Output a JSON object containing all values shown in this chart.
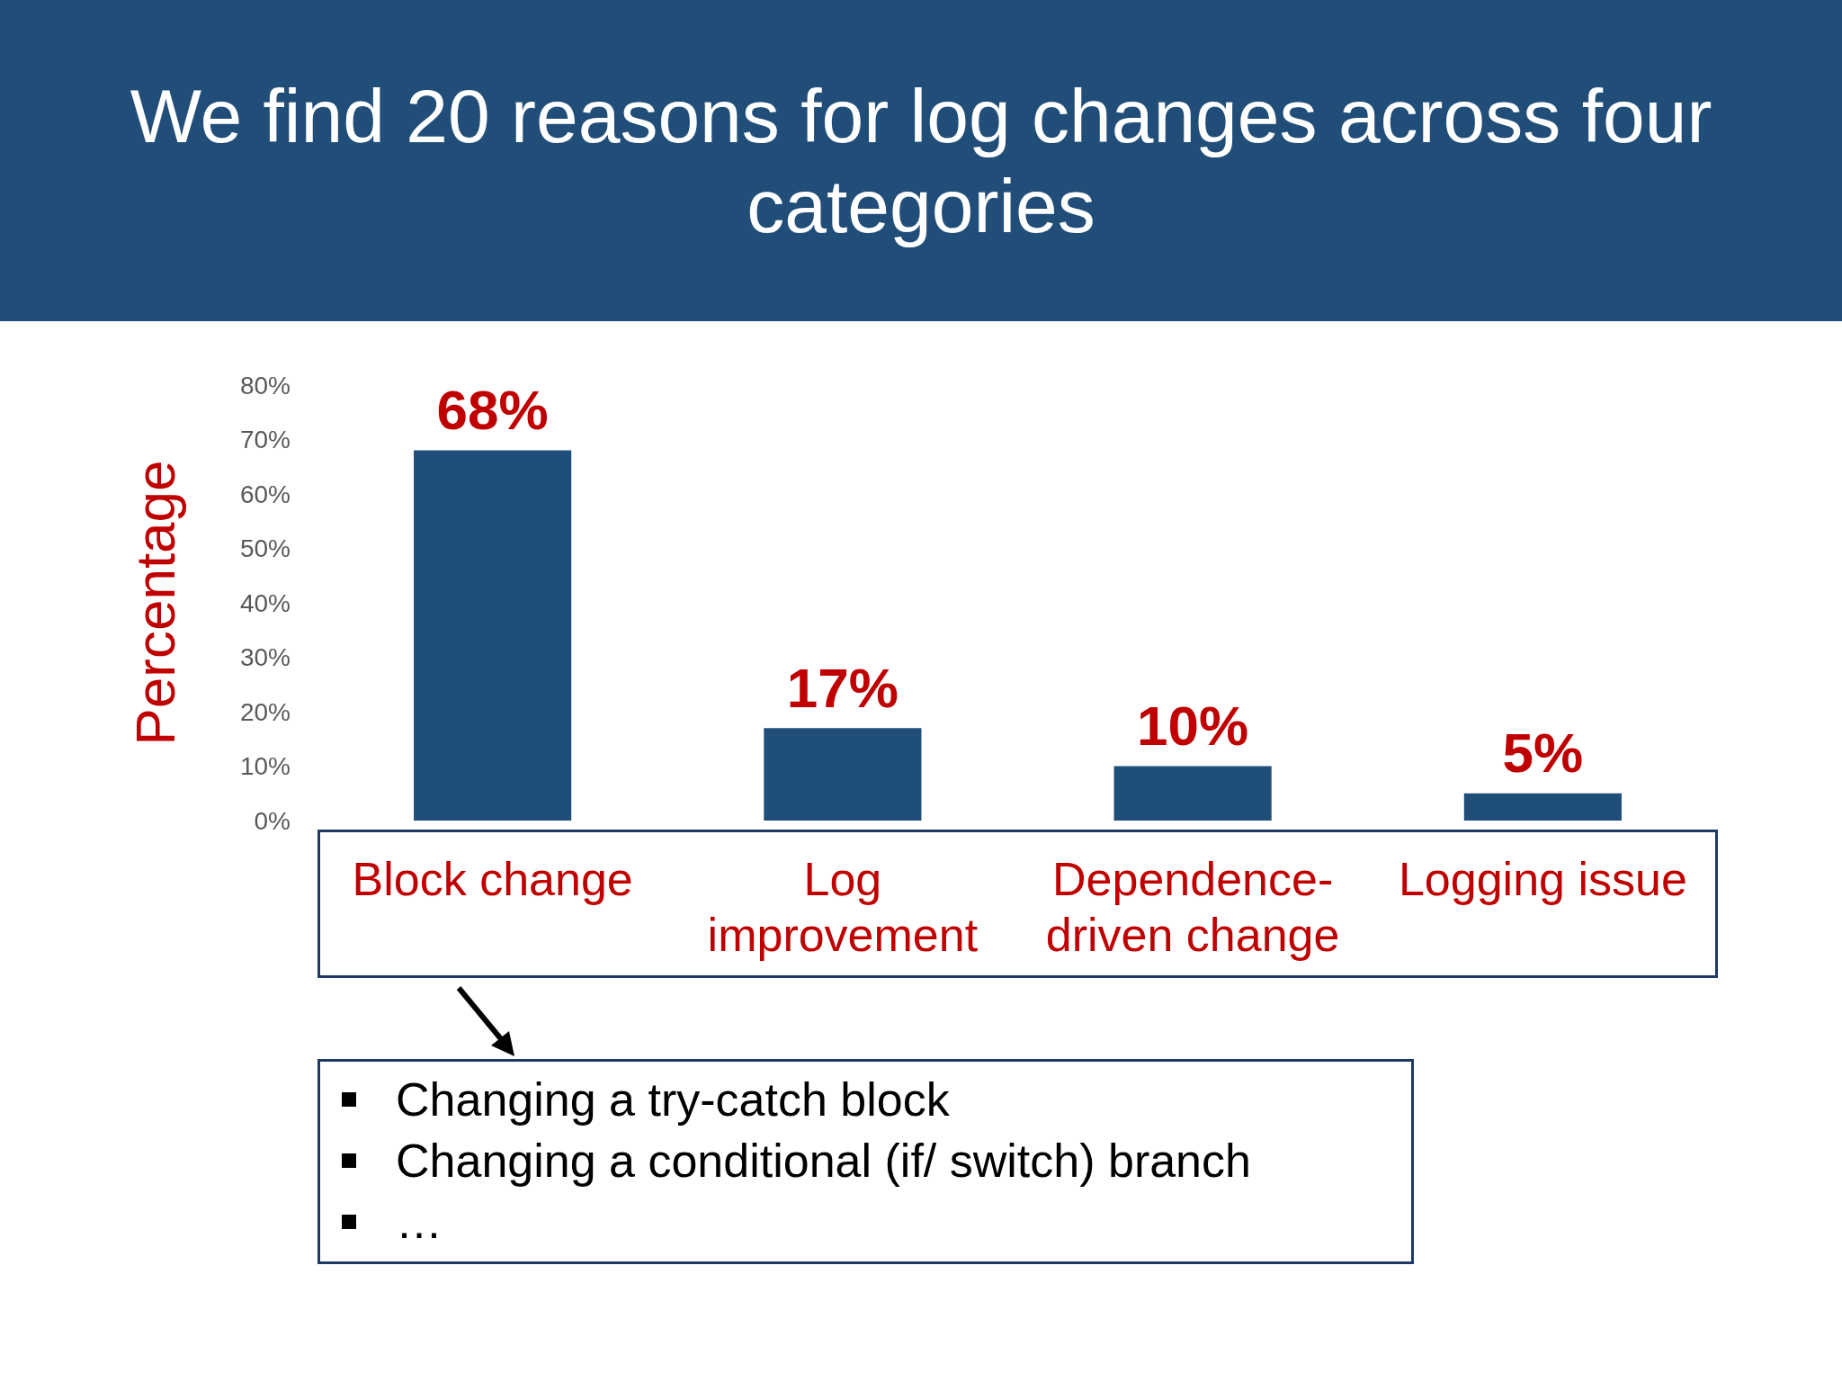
{
  "chart_data": {
    "type": "bar",
    "title": "We find 20 reasons for log changes across four categories",
    "ylabel": "Percentage",
    "categories": [
      "Block change",
      "Log improvement",
      "Dependence-driven change",
      "Logging issue"
    ],
    "values": [
      68,
      17,
      10,
      5
    ],
    "color": "#1f4e79",
    "value_labels": [
      "68%",
      "17%",
      "10%",
      "5%"
    ],
    "ylim": [
      0,
      80
    ],
    "yticks": [
      {
        "value": 0,
        "label": "0%"
      },
      {
        "value": 10,
        "label": "10%"
      },
      {
        "value": 20,
        "label": "20%"
      },
      {
        "value": 30,
        "label": "30%"
      },
      {
        "value": 40,
        "label": "40%"
      },
      {
        "value": 50,
        "label": "50%"
      },
      {
        "value": 60,
        "label": "60%"
      },
      {
        "value": 70,
        "label": "70%"
      },
      {
        "value": 80,
        "label": "80%"
      }
    ],
    "grid": false,
    "annotations": [
      "Changing a try-catch block",
      "Changing a conditional (if/ switch) branch",
      "…"
    ]
  }
}
